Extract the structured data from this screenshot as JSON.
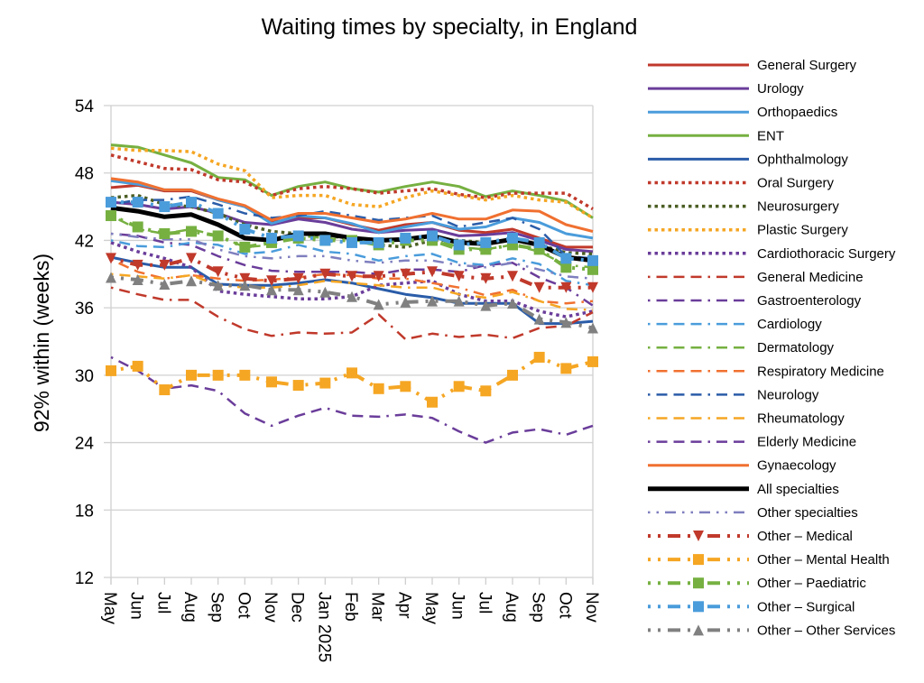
{
  "chart_data": {
    "type": "line",
    "title": "Waiting times by specialty, in England",
    "xlabel": "",
    "ylabel": "92% within (weeks)",
    "ylim": [
      12,
      54
    ],
    "yticks": [
      "54",
      "48",
      "42",
      "36",
      "30",
      "24",
      "18",
      "12"
    ],
    "grid": true,
    "legend_position": "right",
    "categories": [
      "May",
      "Jun",
      "Jul",
      "Aug",
      "Sep",
      "Oct",
      "Nov",
      "Dec",
      "Jan 2025",
      "Feb",
      "Mar",
      "Apr",
      "May",
      "Jun",
      "Jul",
      "Aug",
      "Sep",
      "Oct",
      "Nov"
    ],
    "series": [
      {
        "name": "General Surgery",
        "color": "#C0392B",
        "style": "solid",
        "values": [
          46.7,
          46.9,
          46.4,
          46.4,
          45.6,
          45.0,
          43.6,
          44.0,
          44.0,
          43.4,
          42.9,
          43.4,
          43.6,
          42.9,
          42.7,
          43.0,
          42.2,
          41.4,
          41.4
        ]
      },
      {
        "name": "Urology",
        "color": "#6A3D9A",
        "style": "solid",
        "values": [
          45.4,
          45.2,
          44.8,
          45.0,
          44.4,
          43.6,
          43.4,
          43.9,
          43.6,
          43.0,
          42.7,
          42.9,
          43.0,
          42.4,
          42.5,
          42.7,
          42.0,
          41.2,
          41.0
        ]
      },
      {
        "name": "Orthopaedics",
        "color": "#4A9CDB",
        "style": "solid",
        "values": [
          47.3,
          47.0,
          46.5,
          46.5,
          45.6,
          45.0,
          43.5,
          44.2,
          44.0,
          43.5,
          42.7,
          43.2,
          43.6,
          43.0,
          43.2,
          44.0,
          43.6,
          42.6,
          42.2
        ]
      },
      {
        "name": "ENT",
        "color": "#76B041",
        "style": "solid",
        "values": [
          50.5,
          50.3,
          49.6,
          48.9,
          47.6,
          47.4,
          46.0,
          46.8,
          47.2,
          46.6,
          46.3,
          46.8,
          47.2,
          46.8,
          45.9,
          46.4,
          46.0,
          45.5,
          44.0
        ]
      },
      {
        "name": "Ophthalmology",
        "color": "#2A5CA8",
        "style": "solid",
        "values": [
          40.5,
          40.0,
          39.6,
          39.6,
          38.1,
          38.0,
          38.0,
          38.2,
          38.5,
          38.2,
          37.7,
          37.2,
          36.9,
          36.4,
          36.4,
          36.4,
          34.6,
          34.6,
          34.8
        ]
      },
      {
        "name": "Oral Surgery",
        "color": "#C0392B",
        "style": "dotted",
        "values": [
          49.6,
          49.0,
          48.4,
          48.3,
          47.4,
          47.2,
          46.0,
          46.6,
          46.8,
          46.6,
          46.2,
          46.4,
          46.6,
          46.1,
          45.8,
          46.2,
          46.2,
          46.2,
          44.8
        ]
      },
      {
        "name": "Neurosurgery",
        "color": "#4B5E23",
        "style": "dotted",
        "values": [
          45.8,
          46.0,
          45.2,
          45.0,
          44.4,
          43.4,
          42.8,
          42.6,
          42.4,
          42.2,
          41.6,
          41.4,
          42.0,
          42.0,
          41.8,
          42.0,
          41.6,
          40.9,
          40.8
        ]
      },
      {
        "name": "Plastic Surgery",
        "color": "#F5A623",
        "style": "dotted",
        "values": [
          50.2,
          50.0,
          50.0,
          49.9,
          48.8,
          48.2,
          45.8,
          46.0,
          46.0,
          45.2,
          45.0,
          45.8,
          46.4,
          46.0,
          45.6,
          46.0,
          45.6,
          45.4,
          44.0
        ]
      },
      {
        "name": "Cardiothoracic Surgery",
        "color": "#6A3D9A",
        "style": "dotted",
        "values": [
          41.8,
          41.0,
          40.4,
          39.6,
          37.5,
          37.2,
          37.0,
          36.8,
          36.8,
          37.0,
          38.0,
          38.2,
          38.4,
          37.2,
          36.6,
          36.6,
          35.7,
          35.2,
          35.7
        ]
      },
      {
        "name": "General Medicine",
        "color": "#C0392B",
        "style": "dash-dot-long",
        "values": [
          37.8,
          37.2,
          36.7,
          36.7,
          35.2,
          34.1,
          33.5,
          33.8,
          33.7,
          33.8,
          35.4,
          33.2,
          33.7,
          33.4,
          33.6,
          33.3,
          34.2,
          34.4,
          35.6
        ]
      },
      {
        "name": "Gastroenterology",
        "color": "#6A3D9A",
        "style": "dash-dot-long",
        "values": [
          42.6,
          42.4,
          41.8,
          41.6,
          40.6,
          39.8,
          39.3,
          39.2,
          39.2,
          39.2,
          39.0,
          39.4,
          39.4,
          39.2,
          39.8,
          40.0,
          38.7,
          37.8,
          36.2
        ]
      },
      {
        "name": "Cardiology",
        "color": "#4A9CDB",
        "style": "dash-dot-long",
        "values": [
          42.0,
          41.5,
          41.4,
          41.8,
          41.6,
          40.8,
          41.0,
          41.6,
          41.0,
          40.8,
          40.2,
          40.6,
          40.8,
          40.0,
          39.8,
          40.4,
          39.9,
          38.4,
          38.0
        ]
      },
      {
        "name": "Dermatology",
        "color": "#76B041",
        "style": "dash-dot-long",
        "values": [
          44.2,
          43.0,
          42.6,
          43.0,
          42.4,
          41.4,
          41.6,
          42.4,
          42.2,
          42.0,
          41.8,
          42.2,
          42.2,
          41.4,
          41.2,
          41.6,
          41.0,
          39.8,
          39.6
        ]
      },
      {
        "name": "Respiratory Medicine",
        "color": "#F07030",
        "style": "dash-dot-long",
        "values": [
          40.3,
          39.2,
          38.6,
          38.9,
          38.6,
          38.4,
          38.5,
          38.7,
          39.0,
          38.9,
          38.6,
          38.6,
          38.2,
          37.8,
          37.1,
          37.6,
          36.6,
          36.4,
          36.6
        ]
      },
      {
        "name": "Neurology",
        "color": "#2A5CA8",
        "style": "dash-dot-long",
        "values": [
          45.2,
          45.6,
          45.6,
          45.9,
          45.2,
          44.4,
          44.0,
          44.2,
          44.6,
          44.2,
          43.8,
          44.0,
          44.2,
          43.2,
          43.6,
          44.0,
          43.0,
          40.6,
          40.4
        ]
      },
      {
        "name": "Rheumatology",
        "color": "#F5A623",
        "style": "dash-dot-long",
        "values": [
          39.0,
          38.8,
          38.6,
          38.9,
          38.0,
          37.8,
          37.8,
          38.0,
          38.4,
          38.2,
          38.0,
          37.8,
          37.8,
          37.2,
          36.9,
          37.4,
          36.6,
          35.9,
          35.8
        ]
      },
      {
        "name": "Elderly Medicine",
        "color": "#6A3D9A",
        "style": "dash-dot-long",
        "values": [
          31.6,
          30.4,
          28.8,
          29.1,
          28.6,
          26.6,
          25.5,
          26.4,
          27.1,
          26.4,
          26.3,
          26.5,
          26.2,
          25.0,
          24.0,
          24.9,
          25.2,
          24.7,
          25.5
        ]
      },
      {
        "name": "Gynaecology",
        "color": "#F07030",
        "style": "solid",
        "values": [
          47.5,
          47.2,
          46.5,
          46.5,
          45.7,
          45.1,
          43.8,
          44.4,
          44.4,
          44.0,
          43.6,
          43.9,
          44.4,
          43.9,
          43.9,
          44.7,
          44.6,
          43.4,
          42.8
        ]
      },
      {
        "name": "All specialties",
        "color": "#000000",
        "style": "solid-thick",
        "values": [
          44.9,
          44.6,
          44.1,
          44.3,
          43.4,
          42.2,
          42.0,
          42.6,
          42.6,
          42.2,
          42.0,
          42.1,
          42.4,
          41.8,
          41.7,
          42.1,
          41.6,
          40.5,
          40.2
        ]
      },
      {
        "name": "Other specialties",
        "color": "#7F7FBF",
        "style": "dot-dash",
        "values": [
          42.6,
          42.3,
          42.1,
          42.1,
          41.2,
          40.6,
          40.4,
          40.6,
          40.6,
          40.2,
          40.0,
          40.2,
          40.2,
          39.8,
          39.6,
          40.0,
          39.4,
          38.8,
          38.6
        ]
      },
      {
        "name": "Other – Medical",
        "color": "#C0392B",
        "style": "dot-dash-marker",
        "marker": "triangle-down",
        "values": [
          40.4,
          39.8,
          39.8,
          40.4,
          39.2,
          38.6,
          38.4,
          38.6,
          39.0,
          38.8,
          38.8,
          39.0,
          39.2,
          38.8,
          38.6,
          38.8,
          37.8,
          37.8,
          37.8
        ]
      },
      {
        "name": "Other – Mental Health",
        "color": "#F5A623",
        "style": "dot-dash-marker",
        "marker": "square",
        "values": [
          30.4,
          30.8,
          28.7,
          30.0,
          30.0,
          30.0,
          29.4,
          29.1,
          29.3,
          30.2,
          28.8,
          29.0,
          27.6,
          29.0,
          28.6,
          30.0,
          31.6,
          30.6,
          31.2
        ]
      },
      {
        "name": "Other – Paediatric",
        "color": "#76B041",
        "style": "dot-dash-marker",
        "marker": "square",
        "values": [
          44.2,
          43.2,
          42.6,
          42.8,
          42.4,
          41.4,
          41.8,
          42.2,
          42.0,
          42.0,
          41.6,
          42.0,
          42.0,
          41.2,
          41.2,
          41.6,
          41.2,
          39.6,
          39.4
        ]
      },
      {
        "name": "Other – Surgical",
        "color": "#4A9CDB",
        "style": "dot-dash-marker",
        "marker": "square",
        "values": [
          45.4,
          45.4,
          45.0,
          45.4,
          44.4,
          43.0,
          42.2,
          42.4,
          42.0,
          41.8,
          41.8,
          42.2,
          42.4,
          41.6,
          41.8,
          42.2,
          41.8,
          40.4,
          40.2
        ]
      },
      {
        "name": "Other – Other Services",
        "color": "#808080",
        "style": "dot-dash-marker",
        "marker": "triangle-up",
        "values": [
          38.7,
          38.5,
          38.1,
          38.4,
          38.0,
          38.0,
          37.6,
          37.6,
          37.4,
          37.0,
          36.3,
          36.5,
          36.6,
          36.6,
          36.2,
          36.4,
          35.0,
          34.7,
          34.2
        ]
      }
    ]
  }
}
